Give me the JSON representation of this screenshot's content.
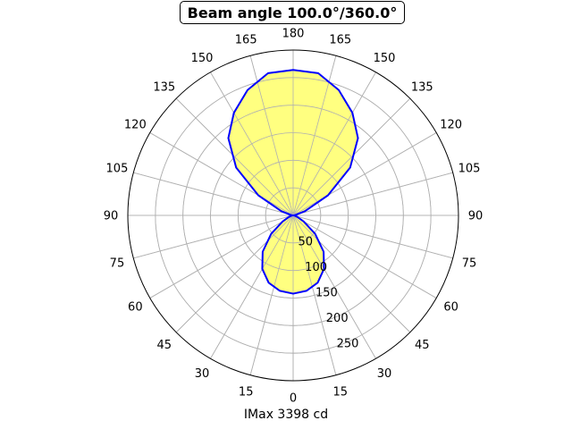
{
  "chart_data": {
    "type": "polar-area",
    "title": "Beam angle 100.0°/360.0°",
    "xlabel": "IMax 3398 cd",
    "angle_labels": [
      {
        "deg": 0,
        "label": "0"
      },
      {
        "deg": 15,
        "label": "15"
      },
      {
        "deg": 30,
        "label": "30"
      },
      {
        "deg": 45,
        "label": "45"
      },
      {
        "deg": 60,
        "label": "60"
      },
      {
        "deg": 75,
        "label": "75"
      },
      {
        "deg": 90,
        "label": "90"
      },
      {
        "deg": 105,
        "label": "105"
      },
      {
        "deg": 120,
        "label": "120"
      },
      {
        "deg": 135,
        "label": "135"
      },
      {
        "deg": 150,
        "label": "150"
      },
      {
        "deg": 165,
        "label": "165"
      },
      {
        "deg": 180,
        "label": "180"
      },
      {
        "deg": 195,
        "label": "165"
      },
      {
        "deg": 210,
        "label": "150"
      },
      {
        "deg": 225,
        "label": "135"
      },
      {
        "deg": 240,
        "label": "120"
      },
      {
        "deg": 255,
        "label": "105"
      },
      {
        "deg": 270,
        "label": "90"
      },
      {
        "deg": 285,
        "label": "75"
      },
      {
        "deg": 300,
        "label": "60"
      },
      {
        "deg": 315,
        "label": "45"
      },
      {
        "deg": 330,
        "label": "30"
      },
      {
        "deg": 345,
        "label": "15"
      }
    ],
    "radial_ticks": [
      50,
      100,
      150,
      200,
      250
    ],
    "radial_tick_labels": [
      "50",
      "100",
      "150",
      "200",
      "250"
    ],
    "rlim": [
      0,
      300
    ],
    "grid": true,
    "fill_color": "#ffff80",
    "line_color": "#0000ff",
    "series": [
      {
        "angles_deg": [
          0,
          10,
          20,
          30,
          40,
          50,
          60,
          70,
          80,
          90,
          100,
          110,
          120,
          130,
          140,
          150,
          160,
          170,
          180,
          190,
          200,
          210,
          220,
          230,
          240,
          250,
          260,
          270,
          280,
          290,
          300,
          310,
          320,
          330,
          340,
          350,
          360
        ],
        "values": [
          142,
          139,
          130,
          112,
          86,
          52,
          22,
          8,
          3,
          1,
          4,
          23,
          73,
          135,
          183,
          215,
          242,
          262,
          264,
          262,
          242,
          215,
          183,
          135,
          73,
          23,
          4,
          1,
          3,
          8,
          22,
          52,
          86,
          112,
          130,
          139,
          142
        ]
      }
    ]
  }
}
